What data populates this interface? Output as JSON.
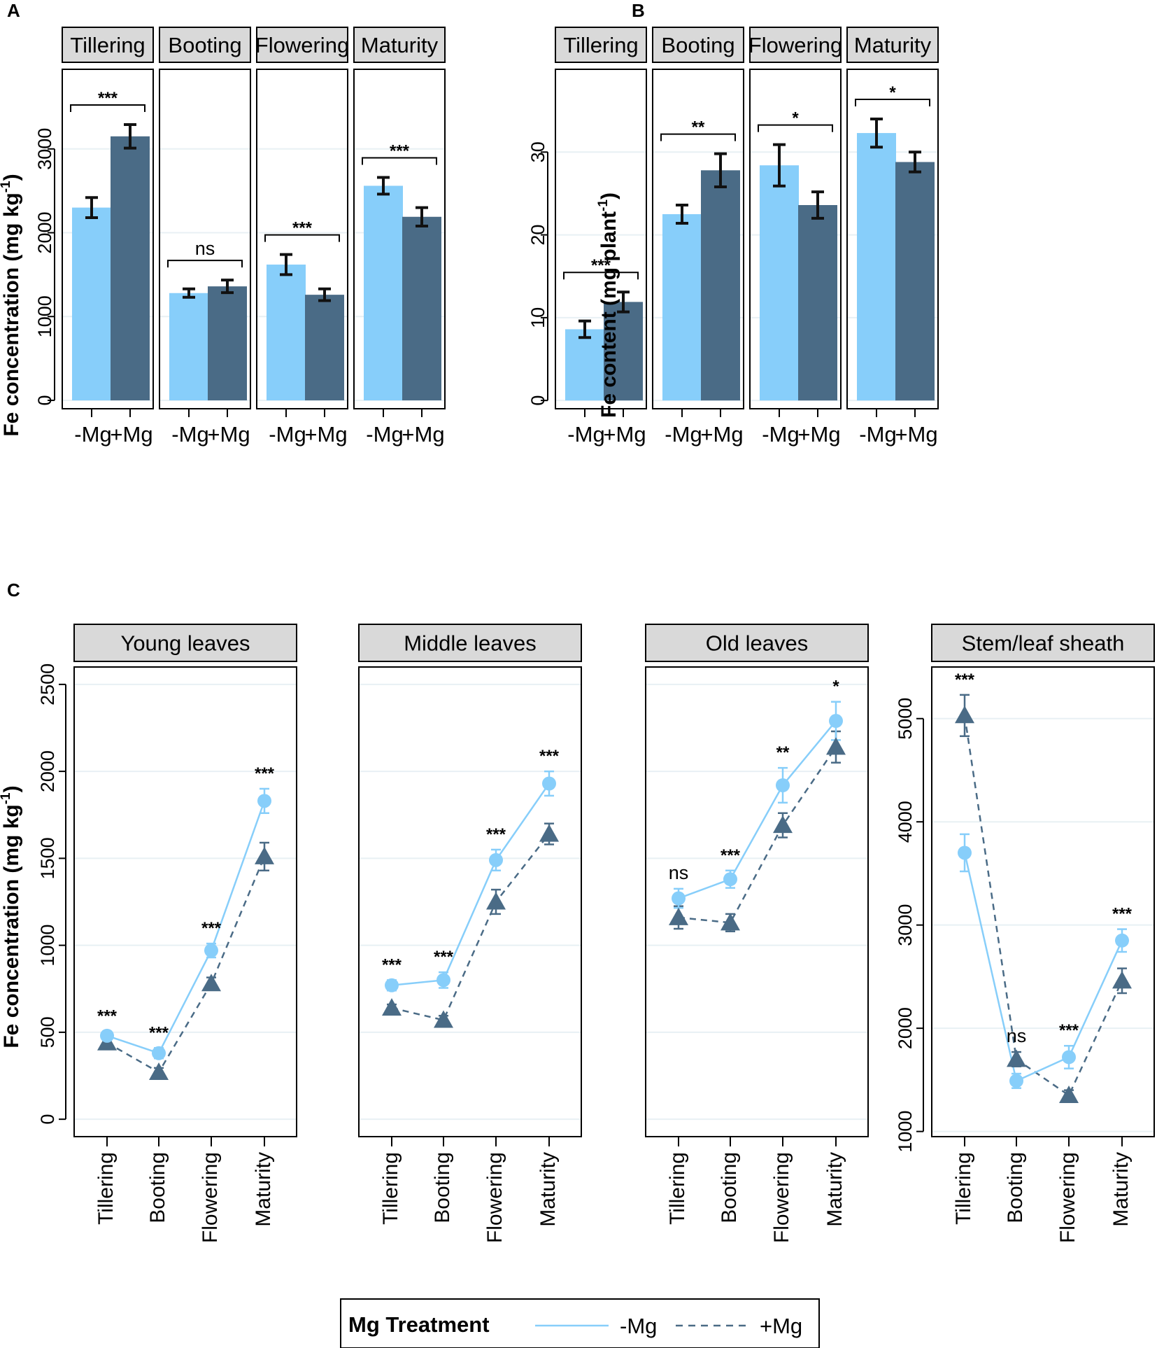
{
  "figure": {
    "panel_letters": [
      "A",
      "B",
      "C"
    ]
  },
  "colors": {
    "minus_mg": "#87CEFA",
    "plus_mg": "#4A6B86",
    "strip_bg": "#D9D9D9",
    "grid": "#E8F0F4",
    "axis": "#000000"
  },
  "legend": {
    "title": "Mg Treatment",
    "entries": [
      "-Mg",
      "+Mg"
    ]
  },
  "chart_data": [
    {
      "panel": "A",
      "type": "bar",
      "ylabel": "Fe concentration (mg kg-1)",
      "ylabel_main": "Fe concentration (mg kg",
      "ylabel_sup": "-1",
      "ylabel_close": ")",
      "ylim": [
        -100,
        3950
      ],
      "yticks": [
        0,
        1000,
        2000,
        3000
      ],
      "xticks": [
        "-Mg",
        "+Mg"
      ],
      "series_names": [
        "-Mg",
        "+Mg"
      ],
      "facets": [
        {
          "strip": "Tillering",
          "values": [
            2300,
            3150
          ],
          "err": [
            120,
            140
          ],
          "sig": "***"
        },
        {
          "strip": "Booting",
          "values": [
            1280,
            1360
          ],
          "err": [
            50,
            75
          ],
          "sig": "ns"
        },
        {
          "strip": "Flowering",
          "values": [
            1620,
            1260
          ],
          "err": [
            120,
            70
          ],
          "sig": "***"
        },
        {
          "strip": "Maturity",
          "values": [
            2560,
            2190
          ],
          "err": [
            100,
            110
          ],
          "sig": "***"
        }
      ]
    },
    {
      "panel": "B",
      "type": "bar",
      "ylabel": "Fe content (mg plant-1)",
      "ylabel_main": "Fe content (mg plant",
      "ylabel_sup": "-1",
      "ylabel_close": ")",
      "ylim": [
        -1,
        40
      ],
      "yticks": [
        0,
        10,
        20,
        30
      ],
      "xticks": [
        "-Mg",
        "+Mg"
      ],
      "series_names": [
        "-Mg",
        "+Mg"
      ],
      "facets": [
        {
          "strip": "Tillering",
          "values": [
            8.6,
            11.9
          ],
          "err": [
            1.0,
            1.2
          ],
          "sig": "***"
        },
        {
          "strip": "Booting",
          "values": [
            22.5,
            27.8
          ],
          "err": [
            1.1,
            2.0
          ],
          "sig": "**"
        },
        {
          "strip": "Flowering",
          "values": [
            28.4,
            23.6
          ],
          "err": [
            2.5,
            1.6
          ],
          "sig": "*"
        },
        {
          "strip": "Maturity",
          "values": [
            32.3,
            28.8
          ],
          "err": [
            1.7,
            1.2
          ],
          "sig": "*"
        }
      ]
    },
    {
      "panel": "C",
      "type": "line",
      "ylabel": "Fe concentration (mg kg-1)",
      "ylabel_main": "Fe concentration (mg kg",
      "ylabel_sup": "-1",
      "ylabel_close": ")",
      "categories": [
        "Tillering",
        "Booting",
        "Flowering",
        "Maturity"
      ],
      "series_names": [
        "-Mg",
        "+Mg"
      ],
      "facets": [
        {
          "strip": "Young leaves",
          "ylim": [
            -100,
            2600
          ],
          "yticks": [
            0,
            500,
            1000,
            1500,
            2000,
            2500
          ],
          "show_yaxis": true,
          "minus": [
            480,
            380,
            970,
            1830
          ],
          "minus_err": [
            25,
            30,
            40,
            70
          ],
          "plus": [
            440,
            270,
            780,
            1510
          ],
          "plus_err": [
            20,
            25,
            35,
            80
          ],
          "sig": [
            "***",
            "***",
            "***",
            "***"
          ]
        },
        {
          "strip": "Middle leaves",
          "ylim": [
            -100,
            2600
          ],
          "yticks": [
            0,
            500,
            1000,
            1500,
            2000,
            2500
          ],
          "show_yaxis": false,
          "minus": [
            770,
            800,
            1490,
            1930
          ],
          "minus_err": [
            30,
            45,
            60,
            70
          ],
          "plus": [
            640,
            570,
            1250,
            1640
          ],
          "plus_err": [
            20,
            25,
            70,
            60
          ],
          "sig": [
            "***",
            "***",
            "***",
            "***"
          ]
        },
        {
          "strip": "Old leaves",
          "ylim": [
            -100,
            2600
          ],
          "yticks": [
            0,
            500,
            1000,
            1500,
            2000,
            2500
          ],
          "show_yaxis": false,
          "minus": [
            1270,
            1380,
            1920,
            2290
          ],
          "minus_err": [
            55,
            50,
            100,
            110
          ],
          "plus": [
            1160,
            1130,
            1690,
            2140
          ],
          "plus_err": [
            65,
            50,
            70,
            90
          ],
          "sig": [
            "ns",
            "***",
            "**",
            "*"
          ]
        },
        {
          "strip": "Stem/leaf sheath",
          "ylim": [
            950,
            5500
          ],
          "yticks": [
            1000,
            2000,
            3000,
            4000,
            5000
          ],
          "show_yaxis": true,
          "minus": [
            3700,
            1490,
            1720,
            2850
          ],
          "minus_err": [
            180,
            70,
            110,
            110
          ],
          "plus": [
            5030,
            1700,
            1350,
            2460
          ],
          "plus_err": [
            200,
            70,
            50,
            120
          ],
          "sig": [
            "***",
            "ns",
            "***",
            "***"
          ]
        }
      ]
    }
  ]
}
